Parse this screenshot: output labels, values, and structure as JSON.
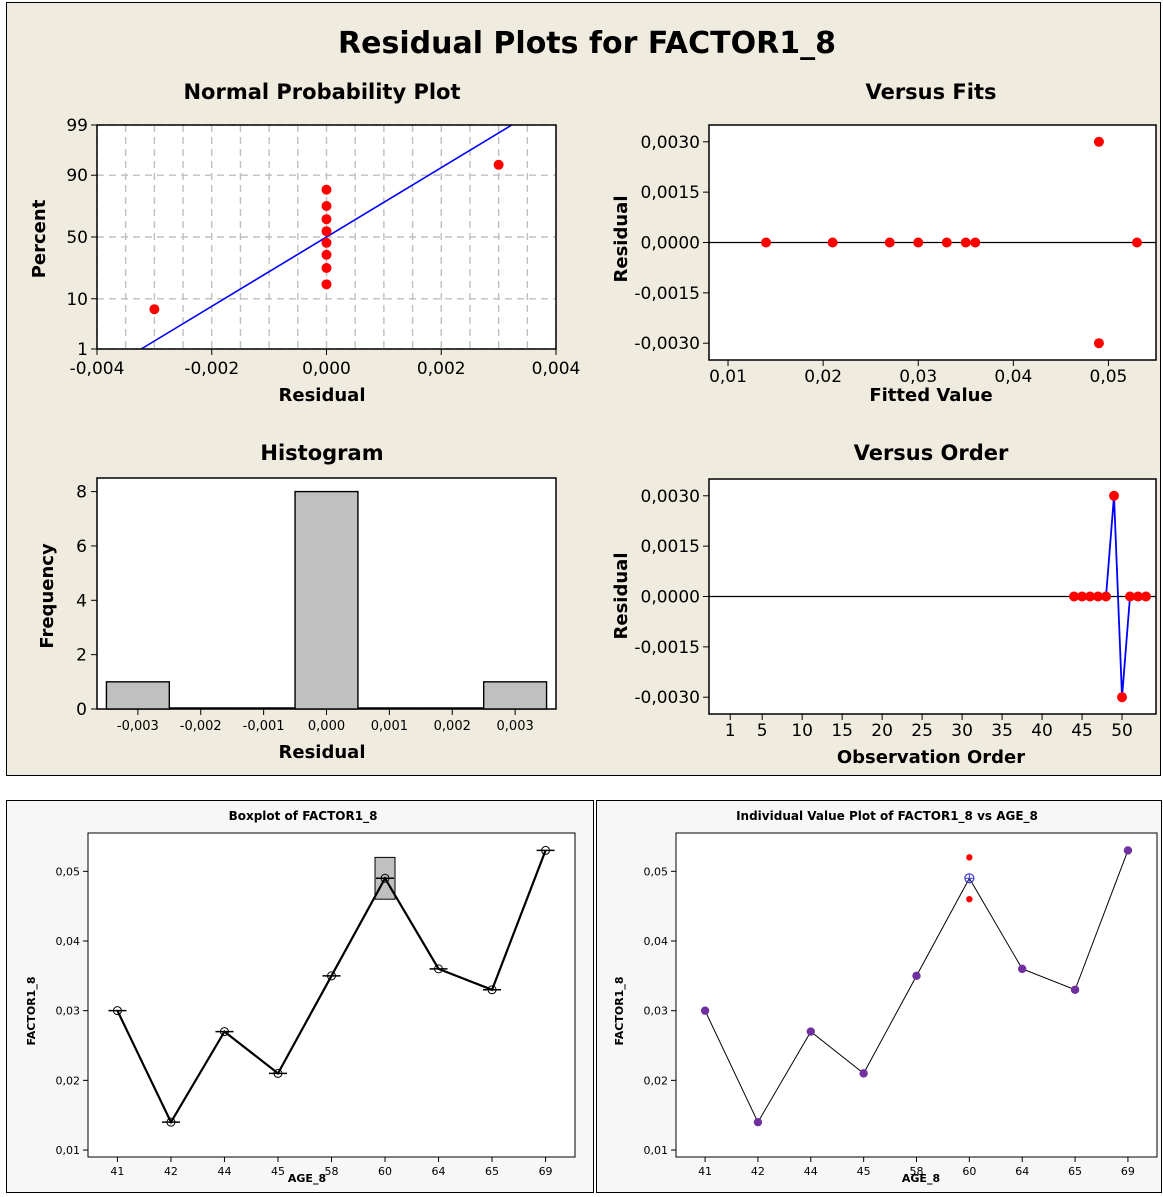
{
  "top": {
    "title": "Residual Plots for FACTOR1_8",
    "npp": {
      "title": "Normal Probability Plot",
      "xlabel": "Residual",
      "ylabel": "Percent",
      "xticks": [
        "-0,004",
        "-0,002",
        "0,000",
        "0,002",
        "0,004"
      ],
      "yticks": [
        "1",
        "10",
        "50",
        "90",
        "99"
      ]
    },
    "fits": {
      "title": "Versus Fits",
      "xlabel": "Fitted Value",
      "ylabel": "Residual",
      "xticks": [
        "0,01",
        "0,02",
        "0,03",
        "0,04",
        "0,05"
      ],
      "yticks": [
        "0,0030",
        "0,0015",
        "0,0000",
        "-0,0015",
        "-0,0030"
      ]
    },
    "hist": {
      "title": "Histogram",
      "xlabel": "Residual",
      "ylabel": "Frequency",
      "xticks": [
        "-0,003",
        "-0,002",
        "-0,001",
        "0,000",
        "0,001",
        "0,002",
        "0,003"
      ],
      "yticks": [
        "0",
        "2",
        "4",
        "6",
        "8"
      ]
    },
    "order": {
      "title": "Versus Order",
      "xlabel": "Observation Order",
      "ylabel": "Residual",
      "xticks": [
        "1",
        "5",
        "10",
        "15",
        "20",
        "25",
        "30",
        "35",
        "40",
        "45",
        "50"
      ],
      "yticks": [
        "0,0030",
        "0,0015",
        "0,0000",
        "-0,0015",
        "-0,0030"
      ]
    }
  },
  "boxplot": {
    "title": "Boxplot of FACTOR1_8",
    "xlabel": "AGE_8",
    "ylabel": "FACTOR1_8",
    "yticks": [
      "0,01",
      "0,02",
      "0,03",
      "0,04",
      "0,05"
    ]
  },
  "ivp": {
    "title": "Individual Value Plot of FACTOR1_8 vs AGE_8",
    "xlabel": "AGE_8",
    "ylabel": "FACTOR1_8",
    "yticks": [
      "0,01",
      "0,02",
      "0,03",
      "0,04",
      "0,05"
    ]
  },
  "colors": {
    "panel_bg": "#efebdf",
    "point": "#ff0000",
    "fit_line": "#0000ff",
    "bar": "#c0c0c0",
    "grid": "#c0c0c0",
    "mean_marker": "#3a3ad8",
    "purple_point": "#7030a0"
  },
  "chart_data": [
    {
      "type": "scatter",
      "title": "Normal Probability Plot",
      "xlabel": "Residual",
      "ylabel": "Percent",
      "xlim": [
        -0.004,
        0.004
      ],
      "ylim": [
        1,
        99
      ],
      "yscale": "normal-probability",
      "grid": true,
      "x": [
        -0.003,
        0.0,
        0.0,
        0.0,
        0.0,
        0.0,
        0.0,
        0.0,
        0.0,
        0.003
      ],
      "y": [
        6.7,
        16.3,
        26.0,
        35.6,
        45.2,
        54.8,
        64.4,
        74.0,
        83.7,
        93.3
      ],
      "fit_line": {
        "x": [
          -0.00323,
          0.00323
        ],
        "y": [
          1,
          99
        ]
      }
    },
    {
      "type": "scatter",
      "title": "Versus Fits",
      "xlabel": "Fitted Value",
      "ylabel": "Residual",
      "xlim": [
        0.008,
        0.055
      ],
      "ylim": [
        -0.0035,
        0.0035
      ],
      "reference_line": 0,
      "x": [
        0.014,
        0.021,
        0.027,
        0.03,
        0.033,
        0.035,
        0.036,
        0.049,
        0.049,
        0.053
      ],
      "y": [
        0,
        0,
        0,
        0,
        0,
        0,
        0,
        0.003,
        -0.003,
        0
      ]
    },
    {
      "type": "bar",
      "title": "Histogram",
      "xlabel": "Residual",
      "ylabel": "Frequency",
      "bin_centers": [
        -0.003,
        -0.002,
        -0.001,
        0.0,
        0.001,
        0.002,
        0.003
      ],
      "bin_width": 0.001,
      "values": [
        1,
        0,
        0,
        8,
        0,
        0,
        1
      ],
      "ylim": [
        0,
        8.5
      ]
    },
    {
      "type": "line",
      "title": "Versus Order",
      "xlabel": "Observation Order",
      "ylabel": "Residual",
      "xlim": [
        0,
        54
      ],
      "ylim": [
        -0.0035,
        0.0035
      ],
      "reference_line": 0,
      "x": [
        44,
        45,
        46,
        47,
        48,
        49,
        50,
        51,
        52,
        53
      ],
      "y": [
        0,
        0,
        0,
        0,
        0,
        0.003,
        -0.003,
        0,
        0,
        0
      ]
    },
    {
      "type": "box",
      "title": "Boxplot of FACTOR1_8",
      "xlabel": "AGE_8",
      "ylabel": "FACTOR1_8",
      "categories": [
        "41",
        "42",
        "44",
        "45",
        "58",
        "60",
        "64",
        "65",
        "69"
      ],
      "values": [
        0.03,
        0.014,
        0.027,
        0.021,
        0.035,
        0.049,
        0.036,
        0.033,
        0.053
      ],
      "box": {
        "category": "60",
        "q1": 0.046,
        "q3": 0.052
      },
      "ylim": [
        0.009,
        0.0555
      ]
    },
    {
      "type": "scatter",
      "title": "Individual Value Plot of FACTOR1_8 vs AGE_8",
      "xlabel": "AGE_8",
      "ylabel": "FACTOR1_8",
      "categories": [
        "41",
        "42",
        "44",
        "45",
        "58",
        "60",
        "64",
        "65",
        "69"
      ],
      "points": [
        {
          "category": "41",
          "values": [
            0.03
          ]
        },
        {
          "category": "42",
          "values": [
            0.014
          ]
        },
        {
          "category": "44",
          "values": [
            0.027
          ]
        },
        {
          "category": "45",
          "values": [
            0.021
          ]
        },
        {
          "category": "58",
          "values": [
            0.035
          ]
        },
        {
          "category": "60",
          "values": [
            0.046,
            0.052
          ]
        },
        {
          "category": "64",
          "values": [
            0.036
          ]
        },
        {
          "category": "65",
          "values": [
            0.033
          ]
        },
        {
          "category": "69",
          "values": [
            0.053
          ]
        }
      ],
      "means": [
        0.03,
        0.014,
        0.027,
        0.021,
        0.035,
        0.049,
        0.036,
        0.033,
        0.053
      ],
      "ylim": [
        0.009,
        0.0555
      ]
    }
  ]
}
